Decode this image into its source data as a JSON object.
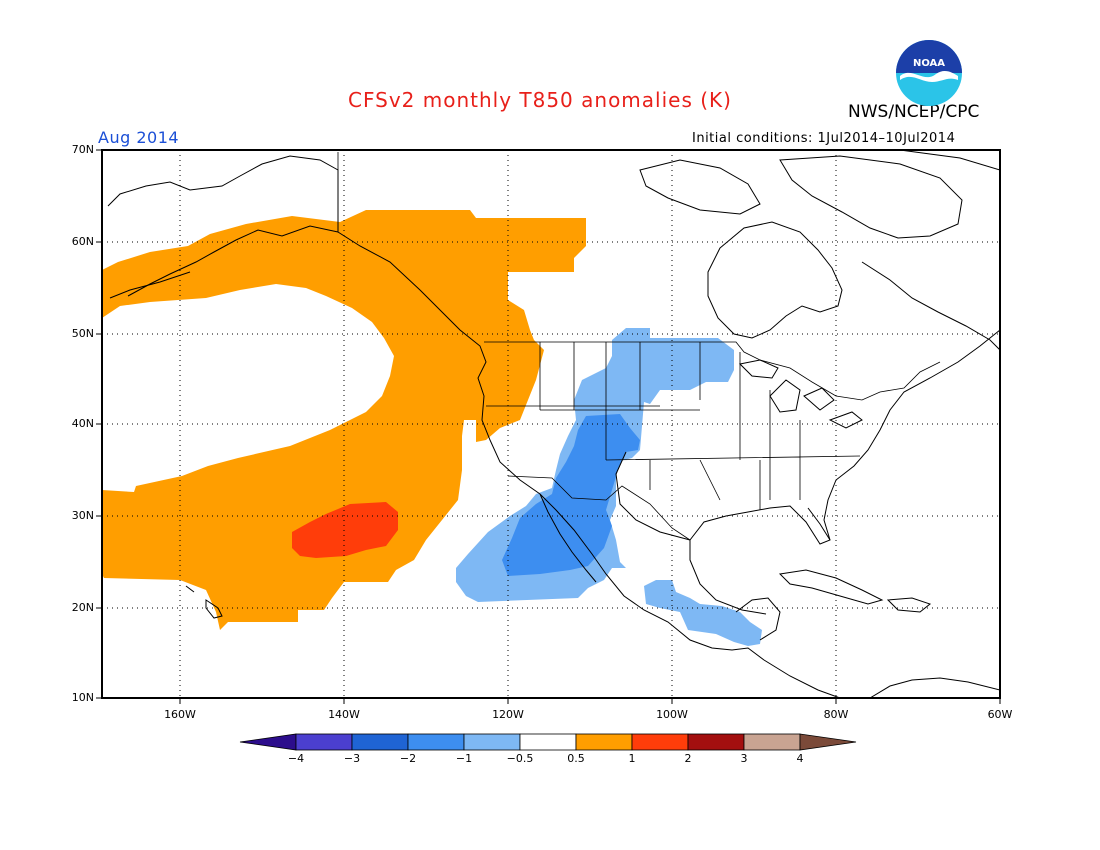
{
  "header": {
    "title": "CFSv2 monthly T850 anomalies (K)",
    "agency": "NWS/NCEP/CPC",
    "month": "Aug 2014",
    "initial_conditions": "Initial conditions: 1Jul2014–10Jul2014",
    "logo_text": "NOAA"
  },
  "map": {
    "lat_labels": [
      "70N",
      "60N",
      "50N",
      "40N",
      "30N",
      "20N",
      "10N"
    ],
    "lon_labels": [
      "160W",
      "140W",
      "120W",
      "100W",
      "80W",
      "60W"
    ],
    "gridlines": "dotted"
  },
  "colorbar": {
    "labels": [
      "−4",
      "−3",
      "−2",
      "−1",
      "−0.5",
      "0.5",
      "1",
      "2",
      "3",
      "4"
    ],
    "colors": [
      "#2c0d8c",
      "#4b3fcf",
      "#1f64d4",
      "#3d8ef0",
      "#7eb8f4",
      "#ffffff",
      "#ff9e00",
      "#ff3d0a",
      "#a30f0f",
      "#c9a492",
      "#7b4a39"
    ]
  },
  "anomalies": {
    "warm_zone_color": "#ff9e00",
    "warm_core_color": "#ff3d0a",
    "cool_zone_color": "#7eb8f4",
    "cool_core_color": "#3d8ef0"
  }
}
